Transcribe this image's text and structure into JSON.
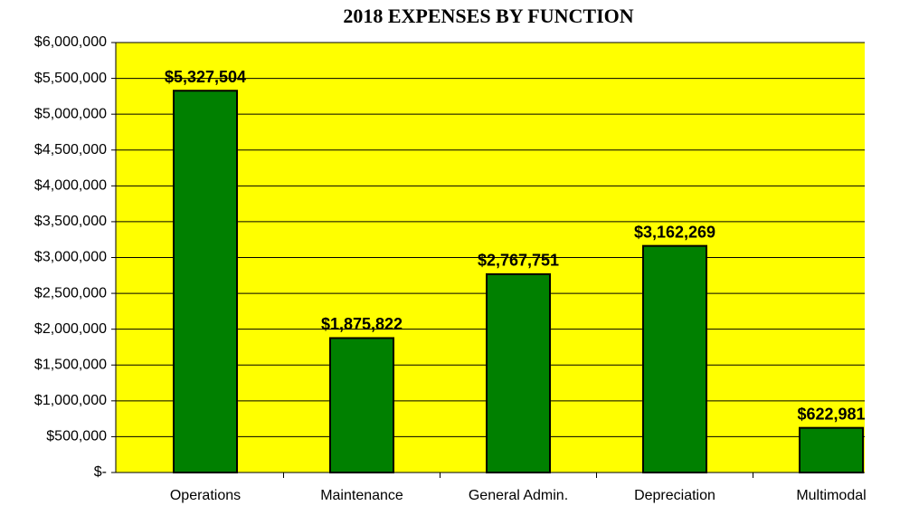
{
  "chart_data": {
    "type": "bar",
    "title": "2018 EXPENSES BY FUNCTION",
    "categories": [
      "Operations",
      "Maintenance",
      "General Admin.",
      "Depreciation",
      "Multimodal"
    ],
    "values": [
      5327504,
      1875822,
      2767751,
      3162269,
      622981
    ],
    "value_labels": [
      "$5,327,504",
      "$1,875,822",
      "$2,767,751",
      "$3,162,269",
      "$622,981"
    ],
    "color": "#008000",
    "ylim": [
      0,
      6000000
    ],
    "yticks": [
      {
        "value": 0,
        "label": "$-"
      },
      {
        "value": 500000,
        "label": "$500,000"
      },
      {
        "value": 1000000,
        "label": "$1,000,000"
      },
      {
        "value": 1500000,
        "label": "$1,500,000"
      },
      {
        "value": 2000000,
        "label": "$2,000,000"
      },
      {
        "value": 2500000,
        "label": "$2,500,000"
      },
      {
        "value": 3000000,
        "label": "$3,000,000"
      },
      {
        "value": 3500000,
        "label": "$3,500,000"
      },
      {
        "value": 4000000,
        "label": "$4,000,000"
      },
      {
        "value": 4500000,
        "label": "$4,500,000"
      },
      {
        "value": 5000000,
        "label": "$5,000,000"
      },
      {
        "value": 5500000,
        "label": "$5,500,000"
      },
      {
        "value": 6000000,
        "label": "$6,000,000"
      }
    ],
    "grid": true
  }
}
